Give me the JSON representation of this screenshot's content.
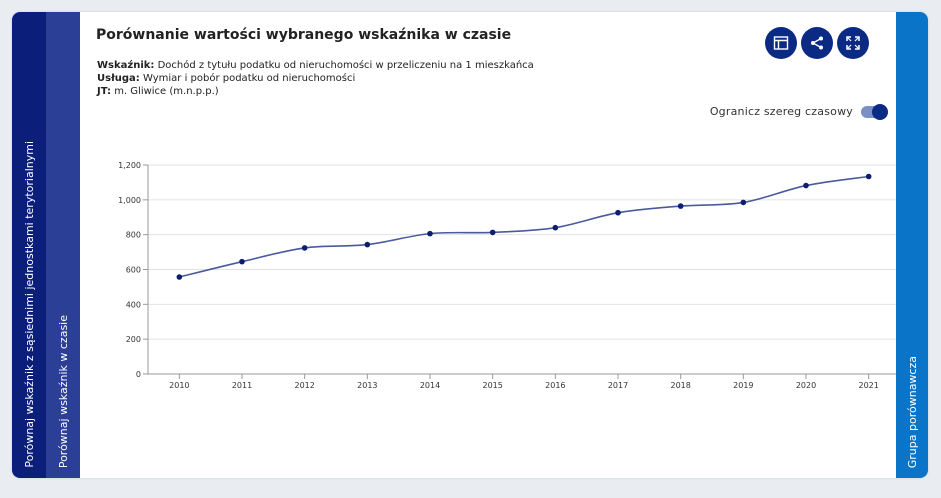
{
  "tabs": {
    "left_outer": "Porównaj wskaźnik z sąsiednimi jednostkami terytorialnymi",
    "left_inner": "Porównaj wskaźnik w czasie",
    "right": "Grupa porównawcza"
  },
  "header": {
    "title": "Porównanie wartości wybranego wskaźnika w czasie",
    "buttons": [
      {
        "name": "table-view-button",
        "icon": "table-icon"
      },
      {
        "name": "share-button",
        "icon": "share-icon"
      },
      {
        "name": "fullscreen-button",
        "icon": "fullscreen-icon"
      }
    ]
  },
  "meta": {
    "indicator_label": "Wskaźnik:",
    "indicator_value": "Dochód z tytułu podatku od nieruchomości w przeliczeniu na 1 mieszkańca",
    "service_label": "Usługa:",
    "service_value": "Wymiar i pobór podatku od nieruchomości",
    "jt_label": "JT:",
    "jt_value": "m. Gliwice (m.n.p.p.)"
  },
  "toggle": {
    "label": "Ogranicz szereg czasowy",
    "on": true
  },
  "colors": {
    "accent": "#0b2a84",
    "tab_outer": "#0b1f7a",
    "tab_inner": "#2b3f96",
    "tab_right": "#0a75c8",
    "line": "#4a5a9e",
    "point": "#0b1f6e"
  },
  "chart_data": {
    "type": "line",
    "x": [
      "2010",
      "2011",
      "2012",
      "2013",
      "2014",
      "2015",
      "2016",
      "2017",
      "2018",
      "2019",
      "2020",
      "2021"
    ],
    "series": [
      {
        "values": [
          557,
          645,
          724,
          743,
          806,
          813,
          840,
          926,
          964,
          985,
          1082,
          1134
        ]
      }
    ],
    "ylim": [
      0,
      1200
    ],
    "yticks": [
      "0",
      "200",
      "400",
      "600",
      "800",
      "1,000",
      "1,200"
    ],
    "grid": true,
    "xlabel": "",
    "ylabel": ""
  }
}
